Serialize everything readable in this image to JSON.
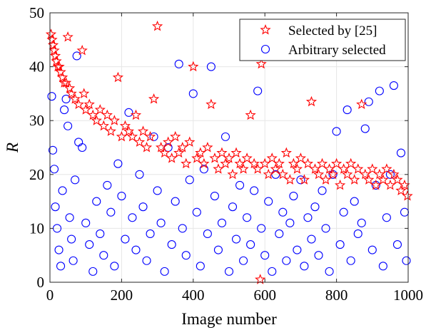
{
  "chart_data": {
    "type": "scatter",
    "xlabel": "Image number",
    "ylabel": "R",
    "xlim": [
      0,
      1000
    ],
    "ylim": [
      0,
      50
    ],
    "xticks": [
      "0",
      "200",
      "400",
      "600",
      "800",
      "1000"
    ],
    "yticks": [
      "0",
      "10",
      "20",
      "30",
      "40",
      "50"
    ],
    "grid": true,
    "legend_position": "top-right",
    "series": [
      {
        "name": "Selected by [25]",
        "marker": "star",
        "color": "#ff0000",
        "points": [
          [
            3,
            46
          ],
          [
            6,
            45
          ],
          [
            9,
            44
          ],
          [
            12,
            43
          ],
          [
            15,
            42
          ],
          [
            18,
            41
          ],
          [
            22,
            40
          ],
          [
            26,
            40
          ],
          [
            30,
            39
          ],
          [
            35,
            38
          ],
          [
            40,
            37
          ],
          [
            45,
            37
          ],
          [
            50,
            45.5
          ],
          [
            55,
            36
          ],
          [
            60,
            35
          ],
          [
            70,
            34
          ],
          [
            80,
            33
          ],
          [
            90,
            43
          ],
          [
            95,
            35
          ],
          [
            100,
            32
          ],
          [
            110,
            33
          ],
          [
            120,
            31
          ],
          [
            130,
            30
          ],
          [
            140,
            32
          ],
          [
            150,
            29
          ],
          [
            160,
            31
          ],
          [
            170,
            28
          ],
          [
            180,
            30
          ],
          [
            190,
            38
          ],
          [
            200,
            27
          ],
          [
            210,
            29
          ],
          [
            220,
            28
          ],
          [
            230,
            27
          ],
          [
            240,
            31
          ],
          [
            250,
            26
          ],
          [
            260,
            28
          ],
          [
            270,
            25
          ],
          [
            280,
            27
          ],
          [
            290,
            34
          ],
          [
            300,
            47.5
          ],
          [
            310,
            25
          ],
          [
            320,
            24
          ],
          [
            330,
            26
          ],
          [
            340,
            23
          ],
          [
            350,
            27
          ],
          [
            360,
            24
          ],
          [
            370,
            25
          ],
          [
            380,
            22
          ],
          [
            390,
            26
          ],
          [
            400,
            40
          ],
          [
            410,
            23
          ],
          [
            420,
            24
          ],
          [
            430,
            22
          ],
          [
            440,
            25
          ],
          [
            450,
            33
          ],
          [
            460,
            23
          ],
          [
            470,
            21
          ],
          [
            480,
            24
          ],
          [
            490,
            22
          ],
          [
            500,
            23
          ],
          [
            510,
            20
          ],
          [
            520,
            24
          ],
          [
            530,
            22
          ],
          [
            540,
            21
          ],
          [
            550,
            23
          ],
          [
            560,
            31
          ],
          [
            570,
            22
          ],
          [
            580,
            21
          ],
          [
            587,
            0.5
          ],
          [
            590,
            40.5
          ],
          [
            600,
            22
          ],
          [
            610,
            20
          ],
          [
            620,
            23
          ],
          [
            630,
            21
          ],
          [
            640,
            22
          ],
          [
            650,
            20
          ],
          [
            660,
            24
          ],
          [
            670,
            19
          ],
          [
            680,
            22
          ],
          [
            690,
            21
          ],
          [
            700,
            23
          ],
          [
            710,
            19
          ],
          [
            720,
            22
          ],
          [
            730,
            33.5
          ],
          [
            740,
            21
          ],
          [
            750,
            20
          ],
          [
            760,
            22
          ],
          [
            770,
            19
          ],
          [
            780,
            21
          ],
          [
            790,
            20
          ],
          [
            800,
            22
          ],
          [
            810,
            18
          ],
          [
            820,
            21
          ],
          [
            830,
            20
          ],
          [
            840,
            22
          ],
          [
            850,
            19
          ],
          [
            860,
            21
          ],
          [
            870,
            33
          ],
          [
            880,
            20
          ],
          [
            890,
            19
          ],
          [
            900,
            21
          ],
          [
            910,
            18
          ],
          [
            920,
            20
          ],
          [
            930,
            19
          ],
          [
            940,
            21
          ],
          [
            950,
            18
          ],
          [
            960,
            20
          ],
          [
            970,
            19
          ],
          [
            980,
            17
          ],
          [
            990,
            18
          ],
          [
            998,
            16
          ]
        ]
      },
      {
        "name": "Arbitrary selected",
        "marker": "circle",
        "color": "#0000ff",
        "points": [
          [
            5,
            34.5
          ],
          [
            8,
            24.5
          ],
          [
            12,
            21
          ],
          [
            15,
            14
          ],
          [
            20,
            10
          ],
          [
            25,
            6
          ],
          [
            30,
            3
          ],
          [
            35,
            17
          ],
          [
            40,
            32
          ],
          [
            45,
            34
          ],
          [
            50,
            29
          ],
          [
            55,
            12
          ],
          [
            60,
            8
          ],
          [
            65,
            4
          ],
          [
            70,
            19
          ],
          [
            75,
            42
          ],
          [
            80,
            26
          ],
          [
            90,
            25
          ],
          [
            100,
            11
          ],
          [
            110,
            7
          ],
          [
            120,
            2
          ],
          [
            130,
            15
          ],
          [
            140,
            9
          ],
          [
            150,
            5
          ],
          [
            160,
            18
          ],
          [
            170,
            13
          ],
          [
            180,
            3
          ],
          [
            190,
            22
          ],
          [
            200,
            16
          ],
          [
            210,
            8
          ],
          [
            220,
            31.5
          ],
          [
            230,
            12
          ],
          [
            240,
            6
          ],
          [
            250,
            20
          ],
          [
            260,
            14
          ],
          [
            270,
            4
          ],
          [
            280,
            9
          ],
          [
            290,
            27
          ],
          [
            300,
            17
          ],
          [
            310,
            11
          ],
          [
            320,
            2
          ],
          [
            330,
            25
          ],
          [
            340,
            7
          ],
          [
            350,
            15
          ],
          [
            360,
            40.5
          ],
          [
            370,
            10
          ],
          [
            380,
            5
          ],
          [
            390,
            19
          ],
          [
            400,
            35
          ],
          [
            410,
            13
          ],
          [
            420,
            3
          ],
          [
            430,
            21
          ],
          [
            440,
            9
          ],
          [
            450,
            40
          ],
          [
            460,
            16
          ],
          [
            470,
            6
          ],
          [
            480,
            11
          ],
          [
            490,
            27
          ],
          [
            500,
            2
          ],
          [
            510,
            14
          ],
          [
            520,
            8
          ],
          [
            530,
            18
          ],
          [
            540,
            4
          ],
          [
            550,
            12
          ],
          [
            560,
            7
          ],
          [
            570,
            17
          ],
          [
            580,
            35.5
          ],
          [
            590,
            10
          ],
          [
            600,
            5
          ],
          [
            610,
            15
          ],
          [
            620,
            2
          ],
          [
            630,
            20
          ],
          [
            640,
            9
          ],
          [
            650,
            13
          ],
          [
            660,
            4
          ],
          [
            670,
            11
          ],
          [
            680,
            16
          ],
          [
            690,
            6
          ],
          [
            700,
            19
          ],
          [
            710,
            3
          ],
          [
            720,
            12
          ],
          [
            730,
            8
          ],
          [
            740,
            14
          ],
          [
            750,
            5
          ],
          [
            760,
            17
          ],
          [
            770,
            10
          ],
          [
            780,
            2
          ],
          [
            790,
            20
          ],
          [
            800,
            28
          ],
          [
            810,
            7
          ],
          [
            820,
            13
          ],
          [
            830,
            32
          ],
          [
            840,
            4
          ],
          [
            850,
            15
          ],
          [
            860,
            9
          ],
          [
            870,
            11
          ],
          [
            880,
            28.5
          ],
          [
            890,
            33.5
          ],
          [
            900,
            6
          ],
          [
            910,
            18
          ],
          [
            920,
            35.5
          ],
          [
            930,
            3
          ],
          [
            940,
            12
          ],
          [
            950,
            20
          ],
          [
            960,
            36.5
          ],
          [
            970,
            7
          ],
          [
            980,
            24
          ],
          [
            990,
            13
          ],
          [
            995,
            4
          ]
        ]
      }
    ]
  }
}
